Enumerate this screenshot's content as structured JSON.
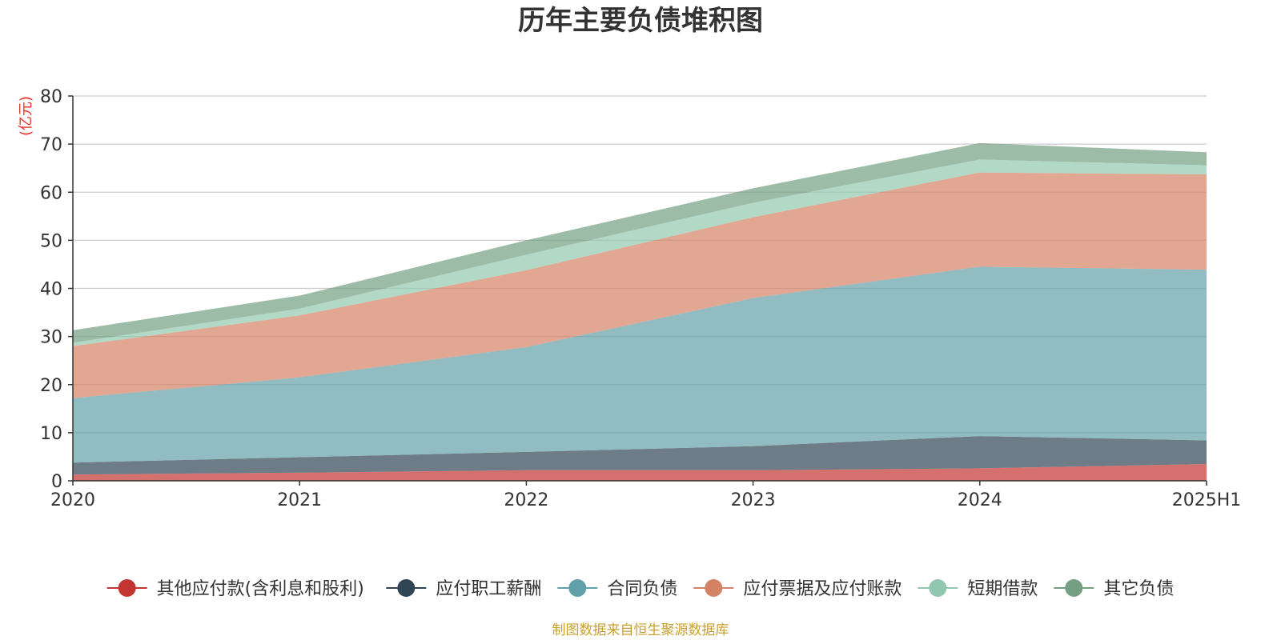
{
  "chart_data": {
    "type": "area",
    "title": "历年主要负债堆积图",
    "unit_label": "(亿元)",
    "x": [
      "2020",
      "2021",
      "2022",
      "2023",
      "2024",
      "2025H1"
    ],
    "ylim": [
      0,
      80
    ],
    "yticks": [
      0,
      10,
      20,
      30,
      40,
      50,
      60,
      70,
      80
    ],
    "grid": true,
    "stacked": true,
    "legend_position": "bottom",
    "series": [
      {
        "name": "其他应付款(含利息和股利)",
        "color": "#c23531",
        "values": [
          1.3,
          1.7,
          2.2,
          2.2,
          2.6,
          3.5
        ]
      },
      {
        "name": "应付职工薪酬",
        "color": "#2f4554",
        "values": [
          2.5,
          3.2,
          3.8,
          5.0,
          6.7,
          4.9
        ]
      },
      {
        "name": "合同负债",
        "color": "#61a0a8",
        "values": [
          13.4,
          16.6,
          21.8,
          30.8,
          35.2,
          35.5
        ]
      },
      {
        "name": "应付票据及应付账款",
        "color": "#d48265",
        "values": [
          10.8,
          12.9,
          16.0,
          16.8,
          19.6,
          19.8
        ]
      },
      {
        "name": "短期借款",
        "color": "#91c7ae",
        "values": [
          0.7,
          1.4,
          3.2,
          3.0,
          2.7,
          1.9
        ]
      },
      {
        "name": "其它负债",
        "color": "#749f83",
        "values": [
          2.6,
          2.7,
          3.0,
          3.0,
          3.4,
          2.7
        ]
      }
    ],
    "unit_color": "#e8302a",
    "grid_color": "#cccccc",
    "axis_color": "#333333"
  },
  "source_text": "制图数据来自恒生聚源数据库",
  "source_color": "#c8a030"
}
